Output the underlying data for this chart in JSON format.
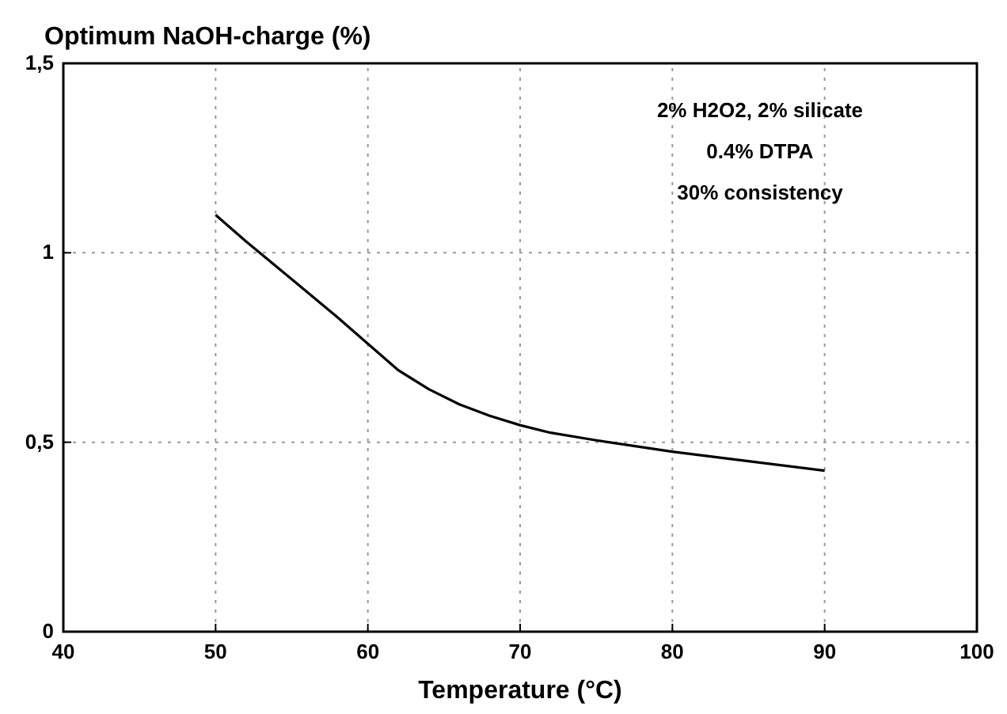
{
  "chart_data": {
    "type": "line",
    "title": "Optimum NaOH-charge (%)",
    "xlabel": "Temperature (°C)",
    "annotations": [
      "2% H2O2, 2% silicate",
      "0.4% DTPA",
      "30% consistency"
    ],
    "series": [
      {
        "color": "#000000",
        "x": [
          50,
          52,
          55,
          58,
          60,
          62,
          64,
          66,
          68,
          70,
          72,
          75,
          80,
          85,
          90
        ],
        "values": [
          1.1,
          1.03,
          0.93,
          0.83,
          0.76,
          0.69,
          0.64,
          0.6,
          0.57,
          0.545,
          0.525,
          0.505,
          0.475,
          0.45,
          0.425
        ]
      }
    ],
    "xlim": [
      40,
      100
    ],
    "xticks": [
      40,
      50,
      60,
      70,
      80,
      90,
      100
    ],
    "ylim": [
      0,
      1.5
    ],
    "yticks": [
      0,
      {
        "value": 0.5,
        "label": "0,5"
      },
      1,
      {
        "value": 1.5,
        "label": "1,5"
      }
    ],
    "grid": true,
    "marker": "none",
    "line_style": "solid"
  }
}
